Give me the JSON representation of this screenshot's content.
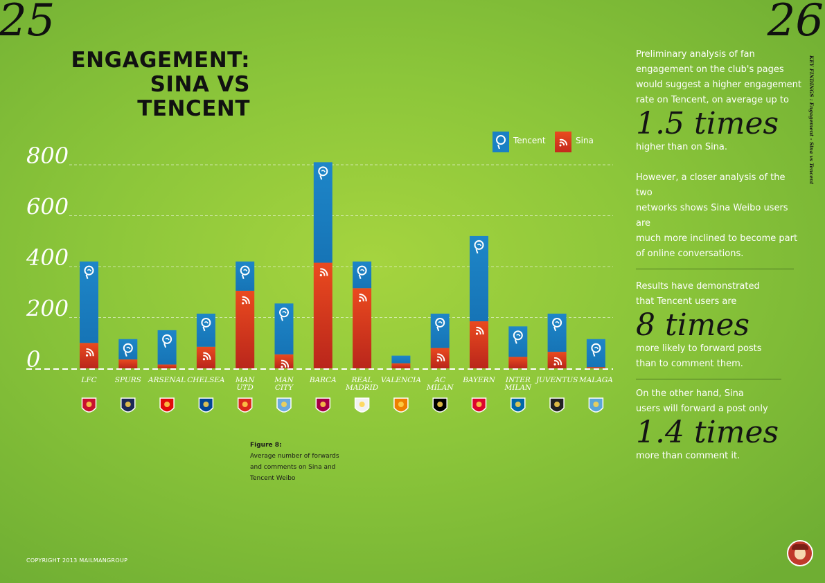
{
  "pages": {
    "left": "25",
    "right": "26"
  },
  "title_lines": [
    "ENGAGEMENT:",
    "SINA VS",
    "TENCENT"
  ],
  "legend": {
    "tencent": "Tencent",
    "sina": "Sina"
  },
  "caption": {
    "title": "Figure 8:",
    "lines": [
      "Average number of forwards",
      "and comments on Sina and",
      "Tencent Weibo"
    ]
  },
  "colors": {
    "tencent": "#1a80c4",
    "sina": "#d93a1f",
    "background": "#9ccf3e",
    "text_dark": "#141414"
  },
  "icons": {
    "tencent": "tencent-logo-icon",
    "sina": "sina-weibo-logo-icon"
  },
  "chart_data": {
    "type": "bar",
    "stacked": true,
    "ylim": [
      0,
      800
    ],
    "yticks": [
      "800",
      "600",
      "400",
      "200",
      "0"
    ],
    "categories": [
      [
        "LFC"
      ],
      [
        "SPURS"
      ],
      [
        "ARSENAL"
      ],
      [
        "CHELSEA"
      ],
      [
        "MAN",
        "UTD"
      ],
      [
        "MAN",
        "CITY"
      ],
      [
        "BARCA"
      ],
      [
        "REAL",
        "MADRID"
      ],
      [
        "VALENCIA"
      ],
      [
        "AC",
        "MILAN"
      ],
      [
        "BAYERN"
      ],
      [
        "INTER",
        "MILAN"
      ],
      [
        "JUVENTUS"
      ],
      [
        "MALAGA"
      ]
    ],
    "club_crests": [
      "liverpool-crest-icon",
      "tottenham-crest-icon",
      "arsenal-crest-icon",
      "chelsea-crest-icon",
      "man-utd-crest-icon",
      "man-city-crest-icon",
      "barcelona-crest-icon",
      "real-madrid-crest-icon",
      "valencia-crest-icon",
      "ac-milan-crest-icon",
      "bayern-crest-icon",
      "inter-milan-crest-icon",
      "juventus-crest-icon",
      "malaga-crest-icon"
    ],
    "series": [
      {
        "name": "Sina",
        "color": "#d93a1f",
        "values": [
          100,
          35,
          15,
          85,
          305,
          55,
          415,
          315,
          20,
          80,
          185,
          45,
          65,
          5
        ]
      },
      {
        "name": "Tencent",
        "color": "#1a80c4",
        "values": [
          320,
          80,
          135,
          130,
          115,
          200,
          395,
          105,
          30,
          135,
          335,
          120,
          150,
          110
        ]
      }
    ],
    "grid": true,
    "legend_position": "top-right"
  },
  "findings": {
    "p1": [
      "Preliminary analysis of fan",
      "engagement on the club's pages",
      "would suggest a higher engagement",
      "rate on Tencent, on average up to"
    ],
    "big1": "1.5 times",
    "p1b": [
      "higher than on Sina."
    ],
    "p2": [
      "However, a closer analysis of the two",
      "networks shows Sina Weibo users are",
      "much more inclined to become part",
      "of online conversations."
    ],
    "p3": [
      "Results have demonstrated",
      "that Tencent users are"
    ],
    "big2": "8 times",
    "p3b": [
      "more likely to forward posts",
      "than to comment them."
    ],
    "p4": [
      "On the other hand, Sina",
      "users will forward a post only"
    ],
    "big3": "1.4 times",
    "p4b": [
      "more than comment it."
    ]
  },
  "side_label": "KEY FINDINGS : Engagement - Sina vs Tencent",
  "copyright": "COPYRIGHT 2013 MAILMANGROUP"
}
